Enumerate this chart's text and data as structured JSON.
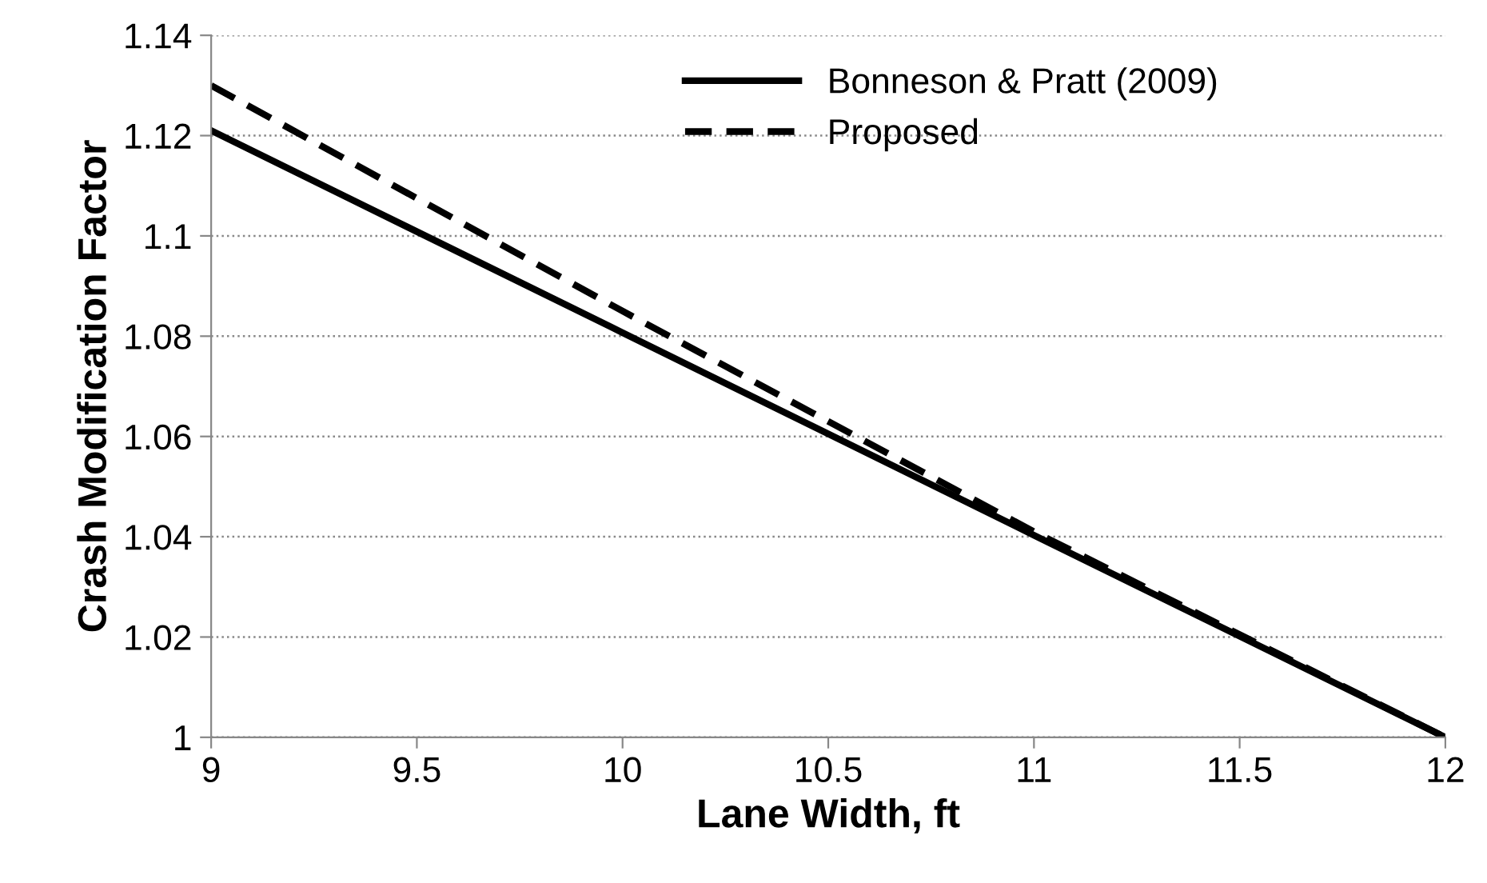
{
  "chart_data": {
    "type": "line",
    "xlabel": "Lane Width, ft",
    "ylabel": "Crash Modification Factor",
    "series": [
      {
        "name": "Bonneson & Pratt (2009)",
        "color": "#000000",
        "line_style": "solid",
        "x": [
          9,
          10,
          11,
          12
        ],
        "values": [
          1.121,
          1.0807,
          1.0403,
          1.0
        ]
      },
      {
        "name": "Proposed",
        "color": "#000000",
        "line_style": "dashed",
        "x": [
          9,
          10,
          11,
          12
        ],
        "values": [
          1.13,
          1.085,
          1.041,
          1.0
        ]
      }
    ],
    "xlim": [
      9,
      12
    ],
    "xticks": [
      9,
      9.5,
      10,
      10.5,
      11,
      11.5,
      12
    ],
    "ylim": [
      1,
      1.14
    ],
    "yticks": [
      1,
      1.02,
      1.04,
      1.06,
      1.08,
      1.1,
      1.12,
      1.14
    ],
    "grid": "y",
    "legend": "top",
    "marker": "none"
  }
}
